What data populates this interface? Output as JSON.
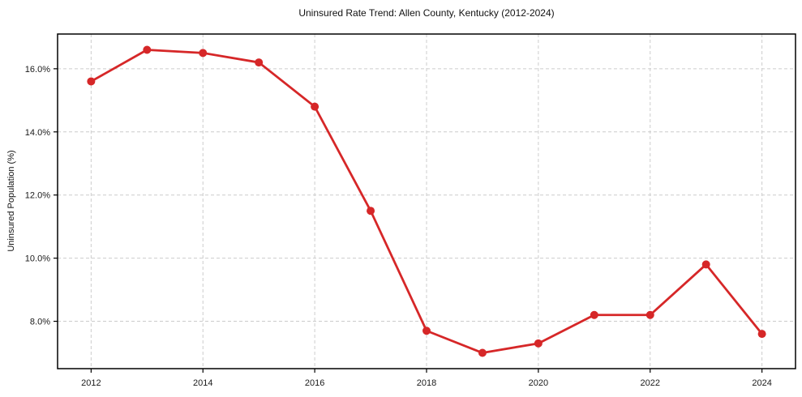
{
  "chart_data": {
    "type": "line",
    "title": "Uninsured Rate Trend: Allen County, Kentucky (2012-2024)",
    "xlabel": "",
    "ylabel": "Uninsured Population (%)",
    "x": [
      2012,
      2013,
      2014,
      2015,
      2016,
      2017,
      2018,
      2019,
      2020,
      2021,
      2022,
      2023,
      2024
    ],
    "series": [
      {
        "name": "Uninsured Rate",
        "values": [
          15.6,
          16.6,
          16.5,
          16.2,
          14.8,
          11.5,
          7.7,
          7.0,
          7.3,
          8.2,
          8.2,
          9.8,
          7.6
        ]
      }
    ],
    "xlim": [
      2011.4,
      2024.6
    ],
    "ylim": [
      6.5,
      17.1
    ],
    "xticks": [
      2012,
      2014,
      2016,
      2018,
      2020,
      2022,
      2024
    ],
    "xtick_labels": [
      "2012",
      "2014",
      "2016",
      "2018",
      "2020",
      "2022",
      "2024"
    ],
    "yticks": [
      8,
      10,
      12,
      14,
      16
    ],
    "ytick_labels": [
      "8.0%",
      "10.0%",
      "12.0%",
      "14.0%",
      "16.0%"
    ],
    "grid": true,
    "grid_style": "dashed",
    "legend": false,
    "line_color": "#d62728",
    "marker": "circle",
    "marker_size": 5,
    "line_width": 2.8,
    "grid_color": "#cccccc",
    "axis_color": "#000000",
    "background": "#ffffff"
  }
}
